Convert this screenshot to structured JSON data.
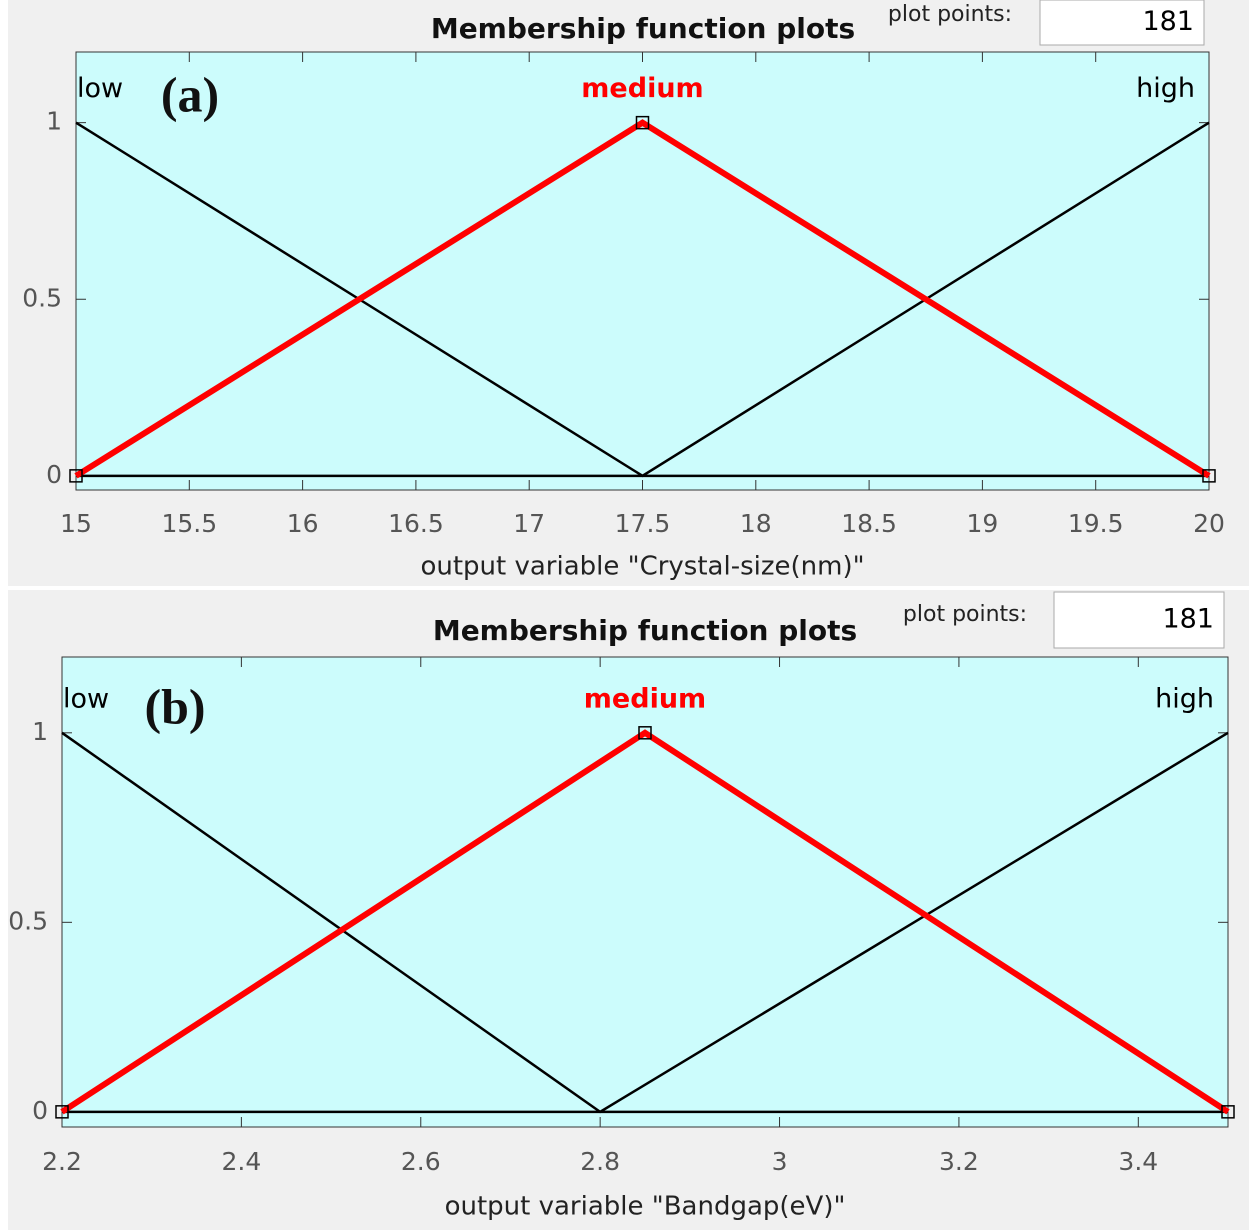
{
  "chart_data": [
    {
      "type": "line",
      "title": "Membership function plots",
      "panel_label": "(a)",
      "plot_points_label": "plot points:",
      "plot_points": 181,
      "xlabel": "output variable \"Crystal-size(nm)\"",
      "xlim": [
        15,
        20
      ],
      "xticks": [
        15,
        15.5,
        16,
        16.5,
        17,
        17.5,
        18,
        18.5,
        19,
        19.5,
        20
      ],
      "ylim": [
        -0.04,
        1.2
      ],
      "yticks": [
        0,
        0.5,
        1
      ],
      "series": [
        {
          "name": "low",
          "color": "#000000",
          "x": [
            15,
            17.5,
            20
          ],
          "values": [
            1,
            0,
            0
          ]
        },
        {
          "name": "medium",
          "color": "#ff0000",
          "selected": true,
          "x": [
            15,
            17.5,
            20
          ],
          "values": [
            0,
            1,
            0
          ]
        },
        {
          "name": "high",
          "color": "#000000",
          "x": [
            15,
            17.5,
            20
          ],
          "values": [
            0,
            0,
            1
          ]
        }
      ]
    },
    {
      "type": "line",
      "title": "Membership function plots",
      "panel_label": "(b)",
      "plot_points_label": "plot points:",
      "plot_points": 181,
      "xlabel": "output variable \"Bandgap(eV)\"",
      "xlim": [
        2.2,
        3.5
      ],
      "xticks": [
        2.2,
        2.4,
        2.6,
        2.8,
        3,
        3.2,
        3.4
      ],
      "ylim": [
        -0.04,
        1.2
      ],
      "yticks": [
        0,
        0.5,
        1
      ],
      "series": [
        {
          "name": "low",
          "color": "#000000",
          "x": [
            2.2,
            2.8,
            3.5
          ],
          "values": [
            1,
            0,
            0
          ]
        },
        {
          "name": "medium",
          "color": "#ff0000",
          "selected": true,
          "x": [
            2.2,
            2.85,
            3.5
          ],
          "values": [
            0,
            1,
            0
          ]
        },
        {
          "name": "high",
          "color": "#000000",
          "x": [
            2.2,
            2.8,
            3.5
          ],
          "values": [
            0,
            0,
            1
          ]
        }
      ]
    }
  ]
}
